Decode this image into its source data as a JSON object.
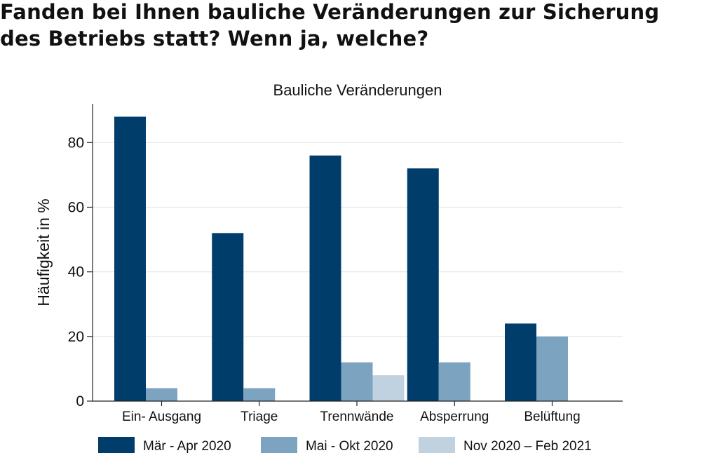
{
  "headline": {
    "line1": "Fanden bei Ihnen bauliche Veränderungen zur Sicherung",
    "line2": "des Betriebs statt? Wenn ja, welche?"
  },
  "colors": {
    "series_1": "#003d6b",
    "series_2": "#7ca3bf",
    "series_3": "#c0d2df",
    "grid": "#e2e6ea",
    "axis": "#222222"
  },
  "chart_data": {
    "type": "bar",
    "title": "Bauliche Veränderungen",
    "xlabel": "",
    "ylabel": "Häufigkeit in %",
    "ylim": [
      0,
      92
    ],
    "yticks": [
      0,
      20,
      40,
      60,
      80
    ],
    "grid": true,
    "legend_position": "bottom",
    "categories": [
      "Ein- Ausgang",
      "Triage",
      "Trennwände",
      "Absperrung",
      "Belüftung"
    ],
    "series": [
      {
        "name": "Mär - Apr 2020",
        "values": [
          88,
          52,
          76,
          72,
          24
        ]
      },
      {
        "name": "Mai - Okt 2020",
        "values": [
          4,
          4,
          12,
          12,
          20
        ]
      },
      {
        "name": "Nov 2020 – Feb 2021",
        "values": [
          0,
          0,
          8,
          0,
          0
        ]
      }
    ]
  }
}
